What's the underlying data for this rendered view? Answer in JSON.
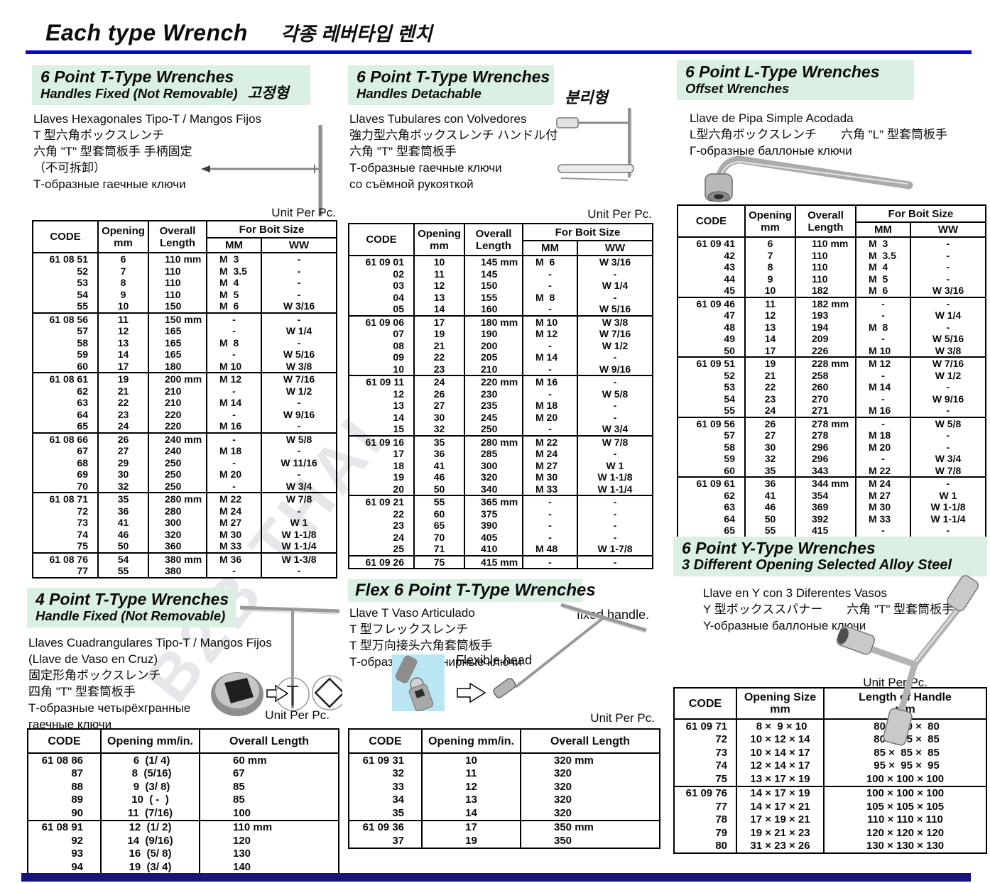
{
  "page": {
    "title": "Each type Wrench",
    "title_ko": "각종 레버타입 렌치",
    "watermark": "B2B THAI",
    "accent_blue": "#0505ce",
    "header_green": "#d9f0e2",
    "footer_navy": "#15157a"
  },
  "sections": {
    "t_fixed": {
      "h1": "6 Point T-Type Wrenches",
      "h2": "Handles Fixed (Not Removable)",
      "tag": "고정형",
      "desc": [
        "Llaves Hexagonales Tipo-T / Mangos Fijos",
        "T 型六角ボックスレンチ",
        "六角 \"T\" 型套筒板手 手柄固定",
        "（不可拆卸）",
        "Т-образные гаечные ключи"
      ],
      "unit": "Unit Per Pc.",
      "table": {
        "kind": "bolt",
        "widths": [
          92,
          71,
          82,
          77,
          106
        ],
        "headers": {
          "code": "CODE",
          "opening": "Opening\nmm",
          "length": "Overall\nLength",
          "bolt": "For Boit Size",
          "mm": "MM",
          "ww": "WW"
        },
        "groups": [
          [
            [
              "61 08 51",
              "6",
              "110 mm",
              "M  3",
              "-"
            ],
            [
              "52",
              "7",
              "110",
              "M  3.5",
              "-"
            ],
            [
              "53",
              "8",
              "110",
              "M  4",
              "-"
            ],
            [
              "54",
              "9",
              "110",
              "M  5",
              "-"
            ],
            [
              "55",
              "10",
              "150",
              "M  6",
              "W 3/16"
            ]
          ],
          [
            [
              "61 08 56",
              "11",
              "150 mm",
              "-",
              "-"
            ],
            [
              "57",
              "12",
              "165",
              "-",
              "W 1/4"
            ],
            [
              "58",
              "13",
              "165",
              "M  8",
              "-"
            ],
            [
              "59",
              "14",
              "165",
              "-",
              "W 5/16"
            ],
            [
              "60",
              "17",
              "180",
              "M 10",
              "W 3/8"
            ]
          ],
          [
            [
              "61 08 61",
              "19",
              "200 mm",
              "M 12",
              "W 7/16"
            ],
            [
              "62",
              "21",
              "210",
              "-",
              "W 1/2"
            ],
            [
              "63",
              "22",
              "210",
              "M 14",
              "-"
            ],
            [
              "64",
              "23",
              "220",
              "-",
              "W 9/16"
            ],
            [
              "65",
              "24",
              "220",
              "M 16",
              "-"
            ]
          ],
          [
            [
              "61 08 66",
              "26",
              "240 mm",
              "-",
              "W 5/8"
            ],
            [
              "67",
              "27",
              "240",
              "M 18",
              "-"
            ],
            [
              "68",
              "29",
              "250",
              "-",
              "W 11/16"
            ],
            [
              "69",
              "30",
              "250",
              "M 20",
              "-"
            ],
            [
              "70",
              "32",
              "250",
              "-",
              "W 3/4"
            ]
          ],
          [
            [
              "61 08 71",
              "35",
              "280 mm",
              "M 22",
              "W 7/8"
            ],
            [
              "72",
              "36",
              "280",
              "M 24",
              "-"
            ],
            [
              "73",
              "41",
              "300",
              "M 27",
              "W 1"
            ],
            [
              "74",
              "46",
              "320",
              "M 30",
              "W 1-1/8"
            ],
            [
              "75",
              "50",
              "360",
              "M 33",
              "W 1-1/4"
            ]
          ],
          [
            [
              "61 08 76",
              "54",
              "380 mm",
              "M 36",
              "W 1-3/8"
            ],
            [
              "77",
              "55",
              "380",
              "-",
              "-"
            ]
          ]
        ]
      }
    },
    "t_detach": {
      "h1": "6 Point T-Type Wrenches",
      "h2": "Handles Detachable",
      "tag": "분리형",
      "desc": [
        "Llaves Tubulares con Volvedores",
        "強力型六角ボックスレンチ ハンドル付",
        "六角 \"T\" 型套筒板手",
        "Т-образные гаечные ключи",
        "со съёмной рукояткой"
      ],
      "unit": "Unit Per Pc.",
      "table": {
        "kind": "bolt",
        "widths": [
          92,
          71,
          82,
          77,
          106
        ],
        "headers": {
          "code": "CODE",
          "opening": "Opening\nmm",
          "length": "Overall\nLength",
          "bolt": "For Boit Size",
          "mm": "MM",
          "ww": "WW"
        },
        "groups": [
          [
            [
              "61 09 01",
              "10",
              "145 mm",
              "M  6",
              "W 3/16"
            ],
            [
              "02",
              "11",
              "145",
              "-",
              "-"
            ],
            [
              "03",
              "12",
              "150",
              "-",
              "W 1/4"
            ],
            [
              "04",
              "13",
              "155",
              "M  8",
              "-"
            ],
            [
              "05",
              "14",
              "160",
              "-",
              "W 5/16"
            ]
          ],
          [
            [
              "61 09 06",
              "17",
              "180 mm",
              "M 10",
              "W 3/8"
            ],
            [
              "07",
              "19",
              "190",
              "M 12",
              "W 7/16"
            ],
            [
              "08",
              "21",
              "200",
              "-",
              "W 1/2"
            ],
            [
              "09",
              "22",
              "205",
              "M 14",
              "-"
            ],
            [
              "10",
              "23",
              "210",
              "-",
              "W 9/16"
            ]
          ],
          [
            [
              "61 09 11",
              "24",
              "220 mm",
              "M 16",
              "-"
            ],
            [
              "12",
              "26",
              "230",
              "-",
              "W 5/8"
            ],
            [
              "13",
              "27",
              "235",
              "M 18",
              "-"
            ],
            [
              "14",
              "30",
              "245",
              "M 20",
              "-"
            ],
            [
              "15",
              "32",
              "250",
              "-",
              "W 3/4"
            ]
          ],
          [
            [
              "61 09 16",
              "35",
              "280 mm",
              "M 22",
              "W 7/8"
            ],
            [
              "17",
              "36",
              "285",
              "M 24",
              "-"
            ],
            [
              "18",
              "41",
              "300",
              "M 27",
              "W 1"
            ],
            [
              "19",
              "46",
              "320",
              "M 30",
              "W 1-1/8"
            ],
            [
              "20",
              "50",
              "340",
              "M 33",
              "W 1-1/4"
            ]
          ],
          [
            [
              "61 09 21",
              "55",
              "365 mm",
              "-",
              "-"
            ],
            [
              "22",
              "60",
              "375",
              "-",
              "-"
            ],
            [
              "23",
              "65",
              "390",
              "-",
              "-"
            ],
            [
              "24",
              "70",
              "405",
              "-",
              "-"
            ],
            [
              "25",
              "71",
              "410",
              "M 48",
              "W 1-7/8"
            ]
          ],
          [
            [
              "61 09 26",
              "75",
              "415 mm",
              "-",
              "-"
            ]
          ]
        ]
      }
    },
    "l_type": {
      "h1": "6 Point L-Type Wrenches",
      "h2": "Offset Wrenches",
      "desc": [
        "Llave de Pipa Simple Acodada",
        "L型六角ボックスレンチ　　六角 \"L\" 型套筒板手",
        "Г-образные баллоные ключи"
      ],
      "table": {
        "kind": "bolt",
        "widths": [
          95,
          71,
          85,
          77,
          106
        ],
        "headers": {
          "code": "CODE",
          "opening": "Opening\nmm",
          "length": "Overall\nLength",
          "bolt": "For Boit Size",
          "mm": "MM",
          "ww": "WW"
        },
        "groups": [
          [
            [
              "61 09 41",
              "6",
              "110 mm",
              "M  3",
              "-"
            ],
            [
              "42",
              "7",
              "110",
              "M  3.5",
              "-"
            ],
            [
              "43",
              "8",
              "110",
              "M  4",
              "-"
            ],
            [
              "44",
              "9",
              "110",
              "M  5",
              "-"
            ],
            [
              "45",
              "10",
              "182",
              "M  6",
              "W 3/16"
            ]
          ],
          [
            [
              "61 09 46",
              "11",
              "182 mm",
              "-",
              "-"
            ],
            [
              "47",
              "12",
              "193",
              "-",
              "W 1/4"
            ],
            [
              "48",
              "13",
              "194",
              "M  8",
              "-"
            ],
            [
              "49",
              "14",
              "209",
              "-",
              "W 5/16"
            ],
            [
              "50",
              "17",
              "226",
              "M 10",
              "W 3/8"
            ]
          ],
          [
            [
              "61 09 51",
              "19",
              "228 mm",
              "M 12",
              "W 7/16"
            ],
            [
              "52",
              "21",
              "258",
              "-",
              "W 1/2"
            ],
            [
              "53",
              "22",
              "260",
              "M 14",
              "-"
            ],
            [
              "54",
              "23",
              "270",
              "-",
              "W 9/16"
            ],
            [
              "55",
              "24",
              "271",
              "M 16",
              "-"
            ]
          ],
          [
            [
              "61 09 56",
              "26",
              "278 mm",
              "-",
              "W 5/8"
            ],
            [
              "57",
              "27",
              "278",
              "M 18",
              "-"
            ],
            [
              "58",
              "30",
              "296",
              "M 20",
              "-"
            ],
            [
              "59",
              "32",
              "296",
              "-",
              "W 3/4"
            ],
            [
              "60",
              "35",
              "343",
              "M 22",
              "W 7/8"
            ]
          ],
          [
            [
              "61 09 61",
              "36",
              "344 mm",
              "M 24",
              "-"
            ],
            [
              "62",
              "41",
              "354",
              "M 27",
              "W 1"
            ],
            [
              "63",
              "46",
              "369",
              "M 30",
              "W 1-1/8"
            ],
            [
              "64",
              "50",
              "392",
              "M 33",
              "W 1-1/4"
            ],
            [
              "65",
              "55",
              "415",
              "-",
              "-"
            ]
          ]
        ]
      }
    },
    "four_pt": {
      "h1": "4 Point T-Type Wrenches",
      "h2": "Handle Fixed (Not Removable)",
      "desc": [
        "Llaves Cuadrangulares Tipo-T / Mangos Fijos",
        "(Llave de Vaso en Cruz)",
        "固定形角ボックスレンチ",
        "四角 \"T\" 型套筒板手",
        "Т-образные четырёхгранные",
        "гаечные ключи"
      ],
      "unit": "Unit Per Pc.",
      "table": {
        "kind": "simple",
        "widths": [
          103,
          139,
          196
        ],
        "headers": [
          "CODE",
          "Opening mm/in.",
          "Overall Length"
        ],
        "groups": [
          [
            [
              "61 08 86",
              " 6  (1/ 4)",
              "60 mm"
            ],
            [
              "87",
              " 8  (5/16)",
              "67"
            ],
            [
              "88",
              " 9  (3/ 8)",
              "85"
            ],
            [
              "89",
              "10  ( -  )",
              "85"
            ],
            [
              "90",
              "11  (7/16)",
              "100"
            ]
          ],
          [
            [
              "61 08 91",
              "12  (1/ 2)",
              "110 mm"
            ],
            [
              "92",
              "14  (9/16)",
              "120"
            ],
            [
              "93",
              "16  (5/ 8)",
              "130"
            ],
            [
              "94",
              "19  (3/ 4)",
              "140"
            ]
          ]
        ]
      }
    },
    "flex": {
      "h1": "Flex 6 Point T-Type Wrenches",
      "desc": [
        "Llave T Vaso Articulado",
        "T 型フレックスレンチ",
        "T 型万向接头六角套筒板手",
        "Т-образные шарнирные ключи"
      ],
      "label_fixed": "fixed handle.",
      "label_flex": "Flexible head",
      "unit": "Unit Per Pc.",
      "table": {
        "kind": "simple",
        "widths": [
          103,
          139,
          196
        ],
        "headers": [
          "CODE",
          "Opening mm/in.",
          "Overall Length"
        ],
        "groups": [
          [
            [
              "61 09 31",
              "10",
              "320 mm"
            ],
            [
              "32",
              "11",
              "320"
            ],
            [
              "33",
              "12",
              "320"
            ],
            [
              "34",
              "13",
              "320"
            ],
            [
              "35",
              "14",
              "320"
            ]
          ],
          [
            [
              "61 09 36",
              "17",
              "350 mm"
            ],
            [
              "37",
              "19",
              "350"
            ]
          ]
        ]
      }
    },
    "y_type": {
      "h1": "6 Point Y-Type Wrenches",
      "h2": "3 Different Opening Selected Alloy Steel",
      "desc": [
        "Llave en Y con 3 Diferentes Vasos",
        "Y 型ボックススパナー　　六角 \"T\" 型套筒板手",
        "Y-образные баллоные ключи"
      ],
      "unit": "Unit Per Pc.",
      "table": {
        "kind": "ymx",
        "widths": [
          88,
          123,
          229
        ],
        "headers": [
          "CODE",
          "Opening Size\nmm",
          "Length of Handle\nmm"
        ],
        "groups": [
          [
            [
              "61 09 71",
              " 8 ×  9 × 10",
              " 80 ×  80 ×  80"
            ],
            [
              "72",
              "10 × 12 × 14",
              " 80 ×  85 ×  85"
            ],
            [
              "73",
              "10 × 14 × 17",
              " 85 ×  85 ×  85"
            ],
            [
              "74",
              "12 × 14 × 17",
              " 95 ×  95 ×  95"
            ],
            [
              "75",
              "13 × 17 × 19",
              "100 × 100 × 100"
            ]
          ],
          [
            [
              "61 09 76",
              "14 × 17 × 19",
              "100 × 100 × 100"
            ],
            [
              "77",
              "14 × 17 × 21",
              "105 × 105 × 105"
            ],
            [
              "78",
              "17 × 19 × 21",
              "110 × 110 × 110"
            ],
            [
              "79",
              "19 × 21 × 23",
              "120 × 120 × 120"
            ],
            [
              "80",
              "31 × 23 × 26",
              "130 × 130 × 130"
            ]
          ]
        ]
      }
    }
  }
}
